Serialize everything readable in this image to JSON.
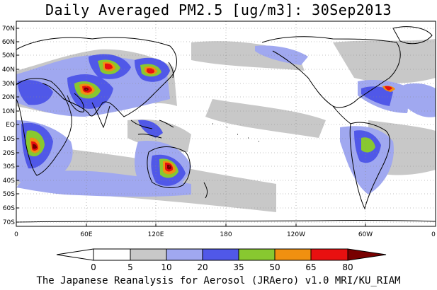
{
  "title": "Daily Averaged PM2.5 [ug/m3]: 30Sep2013",
  "footer": "The Japanese Reanalysis for Aerosol (JRAero) v1.0 MRI/KU_RIAM",
  "lat_labels": [
    "70N",
    "60N",
    "50N",
    "40N",
    "30N",
    "20N",
    "10N",
    "EQ",
    "10S",
    "20S",
    "30S",
    "40S",
    "50S",
    "60S",
    "70S"
  ],
  "lon_labels": [
    "0",
    "60E",
    "120E",
    "180",
    "120W",
    "60W",
    "0"
  ],
  "colorbar": {
    "ticks": [
      "0",
      "5",
      "10",
      "20",
      "35",
      "50",
      "65",
      "80"
    ],
    "colors": [
      "#ffffff",
      "#ffffff",
      "#c8c8c8",
      "#a0a8f0",
      "#5058e8",
      "#88c830",
      "#f09010",
      "#e81010",
      "#780000"
    ]
  }
}
